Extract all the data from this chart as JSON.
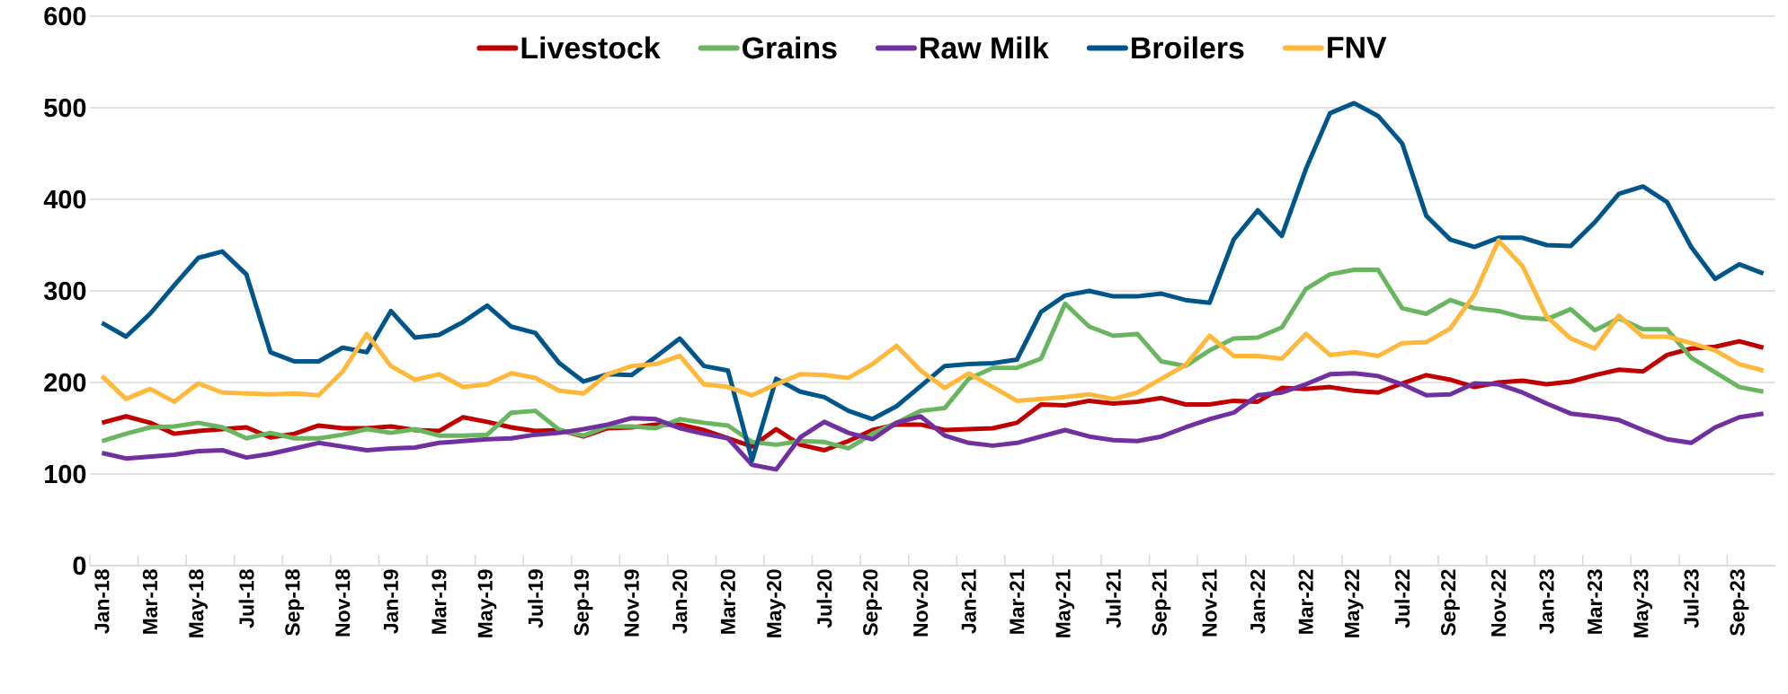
{
  "chart_data": {
    "type": "line",
    "categories": [
      "Jan-18",
      null,
      "Mar-18",
      null,
      "May-18",
      null,
      "Jul-18",
      null,
      "Sep-18",
      null,
      "Nov-18",
      null,
      "Jan-19",
      null,
      "Mar-19",
      null,
      "May-19",
      null,
      "Jul-19",
      null,
      "Sep-19",
      null,
      "Nov-19",
      null,
      "Jan-20",
      null,
      "Mar-20",
      null,
      "May-20",
      null,
      "Jul-20",
      null,
      "Sep-20",
      null,
      "Nov-20",
      null,
      "Jan-21",
      null,
      "Mar-21",
      null,
      "May-21",
      null,
      "Jul-21",
      null,
      "Sep-21",
      null,
      "Nov-21",
      null,
      "Jan-22",
      null,
      "Mar-22",
      null,
      "May-22",
      null,
      "Jul-22",
      null,
      "Sep-22",
      null,
      "Nov-22",
      null,
      "Jan-23",
      null,
      "Mar-23",
      null,
      "May-23",
      null,
      "Jul-23",
      null,
      "Sep-23",
      null
    ],
    "series": [
      {
        "name": "Livestock",
        "color": "#c00000",
        "values": [
          156,
          163,
          156,
          144,
          147,
          149,
          151,
          140,
          144,
          153,
          150,
          150,
          152,
          148,
          147,
          162,
          157,
          151,
          147,
          148,
          141,
          150,
          151,
          154,
          154,
          148,
          139,
          130,
          149,
          132,
          126,
          136,
          148,
          154,
          154,
          148,
          149,
          150,
          156,
          176,
          175,
          180,
          177,
          179,
          183,
          176,
          176,
          180,
          179,
          194,
          193,
          195,
          191,
          189,
          199,
          208,
          203,
          195,
          200,
          202,
          198,
          201,
          208,
          214,
          212,
          230,
          237,
          239,
          245,
          238
        ]
      },
      {
        "name": "Grains",
        "color": "#6ab560",
        "values": [
          136,
          144,
          151,
          152,
          156,
          151,
          139,
          145,
          139,
          139,
          143,
          149,
          145,
          149,
          142,
          142,
          143,
          167,
          169,
          148,
          142,
          152,
          152,
          150,
          160,
          156,
          153,
          135,
          132,
          136,
          135,
          128,
          144,
          156,
          169,
          172,
          204,
          216,
          216,
          226,
          286,
          261,
          251,
          253,
          223,
          218,
          235,
          248,
          249,
          260,
          302,
          318,
          323,
          323,
          281,
          275,
          290,
          281,
          278,
          271,
          269,
          280,
          257,
          270,
          258,
          258,
          227,
          211,
          195,
          190
        ]
      },
      {
        "name": "Raw Milk",
        "color": "#7030a0",
        "values": [
          123,
          117,
          119,
          121,
          125,
          126,
          118,
          122,
          128,
          134,
          130,
          126,
          128,
          129,
          134,
          136,
          138,
          139,
          143,
          145,
          149,
          154,
          161,
          160,
          150,
          144,
          139,
          110,
          105,
          140,
          157,
          145,
          138,
          156,
          163,
          142,
          134,
          131,
          134,
          141,
          148,
          141,
          137,
          136,
          141,
          151,
          160,
          167,
          186,
          189,
          198,
          209,
          210,
          207,
          198,
          186,
          187,
          199,
          198,
          189,
          177,
          166,
          163,
          159,
          148,
          138,
          134,
          151,
          162,
          166
        ]
      },
      {
        "name": "Broilers",
        "color": "#00558a",
        "values": [
          265,
          250,
          275,
          306,
          336,
          343,
          318,
          233,
          223,
          223,
          238,
          233,
          278,
          249,
          252,
          266,
          284,
          261,
          254,
          221,
          201,
          209,
          208,
          228,
          248,
          218,
          213,
          115,
          204,
          190,
          184,
          169,
          160,
          174,
          196,
          218,
          220,
          221,
          225,
          277,
          295,
          300,
          294,
          294,
          297,
          290,
          287,
          356,
          388,
          360,
          433,
          494,
          505,
          491,
          461,
          382,
          356,
          348,
          358,
          358,
          350,
          349,
          375,
          406,
          414,
          397,
          348,
          313,
          329,
          319
        ]
      },
      {
        "name": "FNV",
        "color": "#ffb83a",
        "values": [
          207,
          182,
          193,
          179,
          199,
          189,
          188,
          187,
          188,
          186,
          212,
          253,
          218,
          203,
          209,
          195,
          198,
          210,
          205,
          191,
          188,
          209,
          218,
          220,
          229,
          198,
          195,
          186,
          198,
          209,
          208,
          205,
          220,
          240,
          213,
          194,
          210,
          195,
          180,
          182,
          184,
          187,
          182,
          189,
          204,
          219,
          251,
          229,
          229,
          226,
          253,
          230,
          233,
          229,
          243,
          244,
          259,
          296,
          355,
          327,
          272,
          248,
          237,
          273,
          250,
          250,
          243,
          235,
          220,
          213
        ]
      }
    ],
    "ylim": [
      0,
      600
    ],
    "yticks": [
      0,
      100,
      200,
      300,
      400,
      500,
      600
    ],
    "grid": "y",
    "legend": "top",
    "marker": "none",
    "line_style": "solid"
  }
}
